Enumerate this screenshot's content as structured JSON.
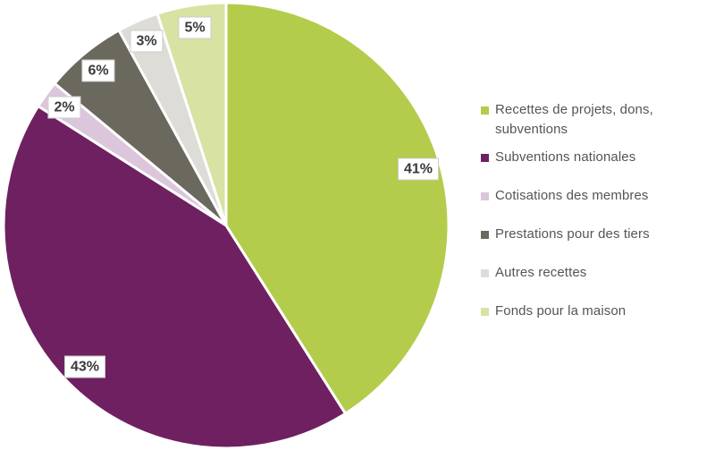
{
  "chart_data": {
    "type": "pie",
    "title": "",
    "start_angle_deg": 0,
    "direction": "clockwise",
    "legend_position": "right",
    "slice_border_color": "#ffffff",
    "data_label_style": {
      "background": "#ffffff",
      "border": "#cccbc9",
      "text": "#3a3a3a"
    },
    "total": 100,
    "slices": [
      {
        "id": "recettes-projets",
        "legend": "Recettes de projets, dons, subventions",
        "value": 41,
        "label": "41%",
        "color": "#b3cc4b"
      },
      {
        "id": "subventions-nationales",
        "legend": "Subventions nationales",
        "value": 43,
        "label": "43%",
        "color": "#6e2060"
      },
      {
        "id": "cotisations-membres",
        "legend": "Cotisations des membres",
        "value": 2,
        "label": "2%",
        "color": "#dcc6db"
      },
      {
        "id": "prestations-tiers",
        "legend": "Prestations pour des tiers",
        "value": 6,
        "label": "6%",
        "color": "#6b685e"
      },
      {
        "id": "autres-recettes",
        "legend": "Autres recettes",
        "value": 3,
        "label": "3%",
        "color": "#dedcd7"
      },
      {
        "id": "fonds-maison",
        "legend": "Fonds pour la maison",
        "value": 5,
        "label": "5%",
        "color": "#d8e2a2"
      }
    ]
  }
}
